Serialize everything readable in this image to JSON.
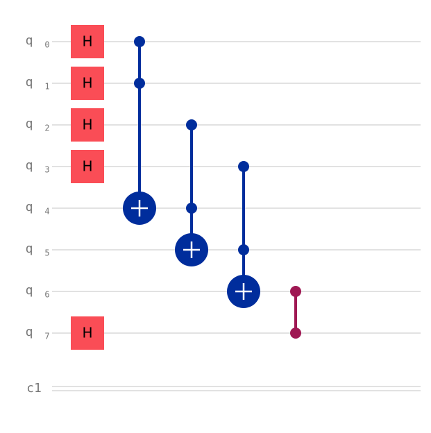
{
  "qubits": [
    {
      "name": "q",
      "index": "0"
    },
    {
      "name": "q",
      "index": "1"
    },
    {
      "name": "q",
      "index": "2"
    },
    {
      "name": "q",
      "index": "3"
    },
    {
      "name": "q",
      "index": "4"
    },
    {
      "name": "q",
      "index": "5"
    },
    {
      "name": "q",
      "index": "6"
    },
    {
      "name": "q",
      "index": "7"
    }
  ],
  "classical": [
    {
      "name": "c1"
    }
  ],
  "h_gates": [
    {
      "label": "H",
      "qubit": 0
    },
    {
      "label": "H",
      "qubit": 1
    },
    {
      "label": "H",
      "qubit": 2
    },
    {
      "label": "H",
      "qubit": 3
    },
    {
      "label": "H",
      "qubit": 7
    }
  ],
  "toffoli_gates": [
    {
      "controls": [
        0,
        1
      ],
      "target": 4
    },
    {
      "controls": [
        2,
        4
      ],
      "target": 5
    },
    {
      "controls": [
        3,
        5
      ],
      "target": 6
    }
  ],
  "cz_gates": [
    {
      "qubits": [
        6,
        7
      ]
    }
  ]
}
